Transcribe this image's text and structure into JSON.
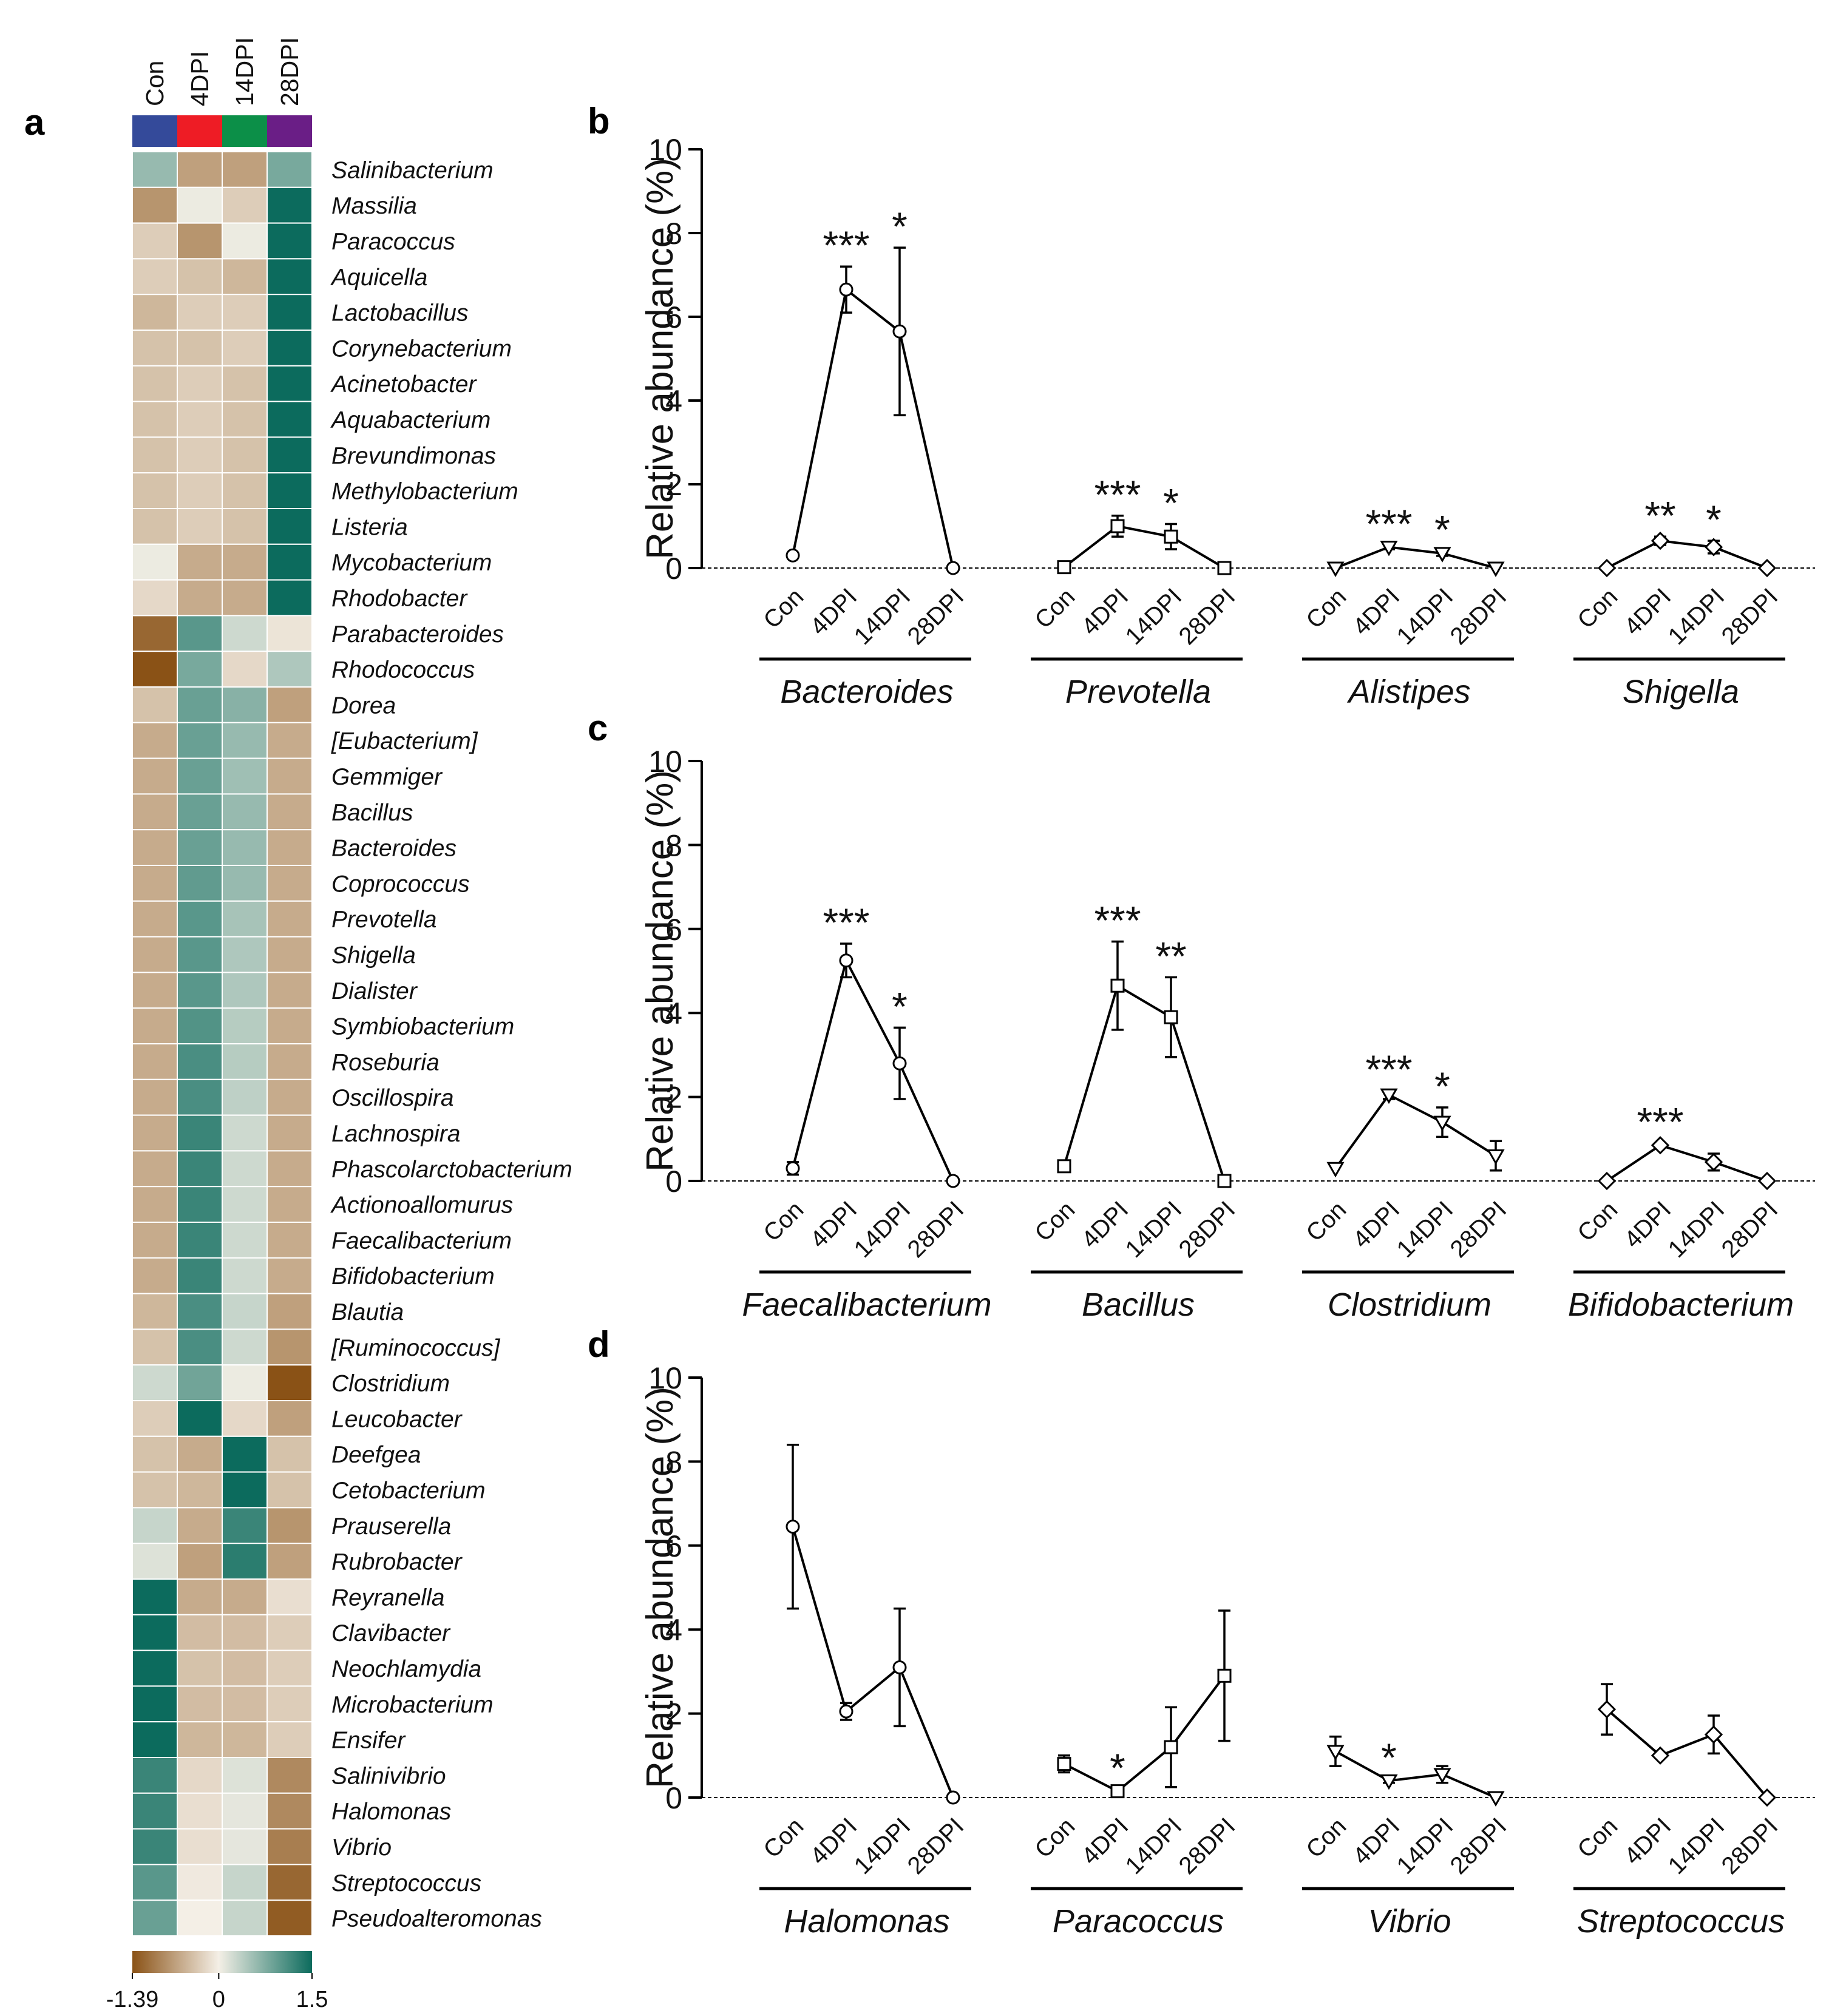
{
  "chart_data": [
    {
      "panel": "a",
      "type": "heatmap",
      "columns": [
        "Con",
        "4DPI",
        "14DPI",
        "28DPI"
      ],
      "column_colors": [
        "#344a9a",
        "#ee1c25",
        "#0c8f48",
        "#6a1e86"
      ],
      "color_scale": {
        "min": -1.39,
        "mid": 0,
        "max": 1.5,
        "min_color": "#8a5216",
        "mid_color": "#f4efe6",
        "max_color": "#0c6b5d"
      },
      "legend_ticks": [
        "-1.39",
        "0",
        "1.5"
      ],
      "rows": [
        {
          "label": "Salinibacterium",
          "values": [
            0.6,
            -0.7,
            -0.7,
            0.8
          ]
        },
        {
          "label": "Massilia",
          "values": [
            -0.8,
            0.05,
            -0.3,
            1.5
          ]
        },
        {
          "label": "Paracoccus",
          "values": [
            -0.3,
            -0.8,
            0.05,
            1.5
          ]
        },
        {
          "label": "Aquicella",
          "values": [
            -0.3,
            -0.4,
            -0.5,
            1.5
          ]
        },
        {
          "label": "Lactobacillus",
          "values": [
            -0.5,
            -0.3,
            -0.3,
            1.5
          ]
        },
        {
          "label": "Corynebacterium",
          "values": [
            -0.4,
            -0.4,
            -0.3,
            1.5
          ]
        },
        {
          "label": "Acinetobacter",
          "values": [
            -0.4,
            -0.3,
            -0.4,
            1.5
          ]
        },
        {
          "label": "Aquabacterium",
          "values": [
            -0.4,
            -0.3,
            -0.4,
            1.5
          ]
        },
        {
          "label": "Brevundimonas",
          "values": [
            -0.4,
            -0.3,
            -0.4,
            1.5
          ]
        },
        {
          "label": "Methylobacterium",
          "values": [
            -0.4,
            -0.3,
            -0.4,
            1.5
          ]
        },
        {
          "label": "Listeria",
          "values": [
            -0.4,
            -0.3,
            -0.4,
            1.5
          ]
        },
        {
          "label": "Mycobacterium",
          "values": [
            0.05,
            -0.6,
            -0.6,
            1.5
          ]
        },
        {
          "label": "Rhodobacter",
          "values": [
            -0.2,
            -0.6,
            -0.6,
            1.5
          ]
        },
        {
          "label": "Parabacteroides",
          "values": [
            -1.2,
            1.0,
            0.25,
            -0.1
          ]
        },
        {
          "label": "Rhodococcus",
          "values": [
            -1.39,
            0.8,
            -0.2,
            0.45
          ]
        },
        {
          "label": "Dorea",
          "values": [
            -0.4,
            0.9,
            0.7,
            -0.7
          ]
        },
        {
          "label": "[Eubacterium]",
          "values": [
            -0.6,
            0.9,
            0.6,
            -0.6
          ]
        },
        {
          "label": "Gemmiger",
          "values": [
            -0.6,
            0.9,
            0.55,
            -0.6
          ]
        },
        {
          "label": "Bacillus",
          "values": [
            -0.6,
            0.9,
            0.6,
            -0.6
          ]
        },
        {
          "label": "Bacteroides",
          "values": [
            -0.6,
            0.9,
            0.6,
            -0.6
          ]
        },
        {
          "label": "Coprococcus",
          "values": [
            -0.6,
            0.95,
            0.6,
            -0.6
          ]
        },
        {
          "label": "Prevotella",
          "values": [
            -0.6,
            1.0,
            0.5,
            -0.6
          ]
        },
        {
          "label": "Shigella",
          "values": [
            -0.6,
            1.0,
            0.45,
            -0.6
          ]
        },
        {
          "label": "Dialister",
          "values": [
            -0.6,
            1.0,
            0.45,
            -0.6
          ]
        },
        {
          "label": "Symbiobacterium",
          "values": [
            -0.6,
            1.05,
            0.4,
            -0.6
          ]
        },
        {
          "label": "Roseburia",
          "values": [
            -0.6,
            1.1,
            0.4,
            -0.6
          ]
        },
        {
          "label": "Oscillospira",
          "values": [
            -0.6,
            1.1,
            0.35,
            -0.6
          ]
        },
        {
          "label": "Lachnospira",
          "values": [
            -0.6,
            1.2,
            0.25,
            -0.6
          ]
        },
        {
          "label": "Phascolarctobacterium",
          "values": [
            -0.6,
            1.2,
            0.25,
            -0.6
          ]
        },
        {
          "label": "Actionoallomurus",
          "values": [
            -0.6,
            1.2,
            0.25,
            -0.6
          ]
        },
        {
          "label": "Faecalibacterium",
          "values": [
            -0.6,
            1.2,
            0.25,
            -0.6
          ]
        },
        {
          "label": "Bifidobacterium",
          "values": [
            -0.6,
            1.2,
            0.25,
            -0.6
          ]
        },
        {
          "label": "Blautia",
          "values": [
            -0.5,
            1.1,
            0.3,
            -0.7
          ]
        },
        {
          "label": "[Ruminococcus]",
          "values": [
            -0.4,
            1.1,
            0.25,
            -0.8
          ]
        },
        {
          "label": "Clostridium",
          "values": [
            0.25,
            0.85,
            0.05,
            -1.39
          ]
        },
        {
          "label": "Leucobacter",
          "values": [
            -0.3,
            1.5,
            -0.2,
            -0.7
          ]
        },
        {
          "label": "Deefgea",
          "values": [
            -0.4,
            -0.6,
            1.5,
            -0.4
          ]
        },
        {
          "label": "Cetobacterium",
          "values": [
            -0.4,
            -0.5,
            1.5,
            -0.4
          ]
        },
        {
          "label": "Prauserella",
          "values": [
            0.3,
            -0.6,
            1.2,
            -0.8
          ]
        },
        {
          "label": "Rubrobacter",
          "values": [
            0.15,
            -0.7,
            1.3,
            -0.7
          ]
        },
        {
          "label": "Reyranella",
          "values": [
            1.5,
            -0.6,
            -0.6,
            -0.15
          ]
        },
        {
          "label": "Clavibacter",
          "values": [
            1.5,
            -0.45,
            -0.45,
            -0.3
          ]
        },
        {
          "label": "Neochlamydia",
          "values": [
            1.5,
            -0.4,
            -0.45,
            -0.3
          ]
        },
        {
          "label": "Microbacterium",
          "values": [
            1.5,
            -0.45,
            -0.45,
            -0.3
          ]
        },
        {
          "label": "Ensifer",
          "values": [
            1.5,
            -0.5,
            -0.5,
            -0.3
          ]
        },
        {
          "label": "Salinivibrio",
          "values": [
            1.2,
            -0.2,
            0.15,
            -0.9
          ]
        },
        {
          "label": "Halomonas",
          "values": [
            1.2,
            -0.15,
            0.1,
            -0.9
          ]
        },
        {
          "label": "Vibrio",
          "values": [
            1.2,
            -0.15,
            0.1,
            -1.0
          ]
        },
        {
          "label": "Streptococcus",
          "values": [
            1.0,
            -0.05,
            0.3,
            -1.2
          ]
        },
        {
          "label": "Pseudoalteromonas",
          "values": [
            0.9,
            0.0,
            0.3,
            -1.3
          ]
        }
      ]
    },
    {
      "panel": "b",
      "type": "line",
      "ylabel": "Relative abundance (%)",
      "ylim": [
        0,
        10
      ],
      "yticks": [
        "0",
        "2",
        "4",
        "6",
        "8",
        "10"
      ],
      "x_categories": [
        "Con",
        "4DPI",
        "14DPI",
        "28DPI"
      ],
      "marker": "mixed",
      "groups": [
        {
          "name": "Bacteroides",
          "marker": "circle",
          "values": [
            0.3,
            6.65,
            5.65,
            0
          ],
          "errors": [
            0.05,
            0.55,
            2.0,
            0
          ],
          "stars": [
            "",
            "***",
            "*",
            ""
          ]
        },
        {
          "name": "Prevotella",
          "marker": "square",
          "values": [
            0.02,
            1.0,
            0.75,
            0
          ],
          "errors": [
            0,
            0.25,
            0.3,
            0
          ],
          "stars": [
            "",
            "***",
            "*",
            ""
          ]
        },
        {
          "name": "Alistipes",
          "marker": "triangle-down",
          "values": [
            0,
            0.5,
            0.35,
            0
          ],
          "errors": [
            0,
            0.05,
            0.06,
            0
          ],
          "stars": [
            "",
            "***",
            "*",
            ""
          ]
        },
        {
          "name": "Shigella",
          "marker": "diamond",
          "values": [
            0,
            0.65,
            0.5,
            0
          ],
          "errors": [
            0,
            0.1,
            0.15,
            0
          ],
          "stars": [
            "",
            "**",
            "*",
            ""
          ]
        }
      ]
    },
    {
      "panel": "c",
      "type": "line",
      "ylabel": "Relative abundance (%)",
      "ylim": [
        0,
        10
      ],
      "yticks": [
        "0",
        "2",
        "4",
        "6",
        "8",
        "10"
      ],
      "x_categories": [
        "Con",
        "4DPI",
        "14DPI",
        "28DPI"
      ],
      "groups": [
        {
          "name": "Faecalibacterium",
          "marker": "circle",
          "values": [
            0.3,
            5.25,
            2.8,
            0
          ],
          "errors": [
            0.15,
            0.4,
            0.85,
            0
          ],
          "stars": [
            "",
            "***",
            "*",
            ""
          ]
        },
        {
          "name": "Bacillus",
          "marker": "square",
          "values": [
            0.35,
            4.65,
            3.9,
            0
          ],
          "errors": [
            0,
            1.05,
            0.95,
            0
          ],
          "stars": [
            "",
            "***",
            "**",
            ""
          ]
        },
        {
          "name": "Clostridium",
          "marker": "triangle-down",
          "values": [
            0.3,
            2.05,
            1.4,
            0.6
          ],
          "errors": [
            0,
            0.1,
            0.35,
            0.35
          ],
          "stars": [
            "",
            "***",
            "*",
            ""
          ]
        },
        {
          "name": "Bifidobacterium",
          "marker": "diamond",
          "values": [
            0,
            0.85,
            0.45,
            0
          ],
          "errors": [
            0,
            0.05,
            0.2,
            0
          ],
          "stars": [
            "",
            "***",
            "",
            ""
          ]
        }
      ]
    },
    {
      "panel": "d",
      "type": "line",
      "ylabel": "Relative abundance (%)",
      "ylim": [
        0,
        10
      ],
      "yticks": [
        "0",
        "2",
        "4",
        "6",
        "8",
        "10"
      ],
      "x_categories": [
        "Con",
        "4DPI",
        "14DPI",
        "28DPI"
      ],
      "groups": [
        {
          "name": "Halomonas",
          "marker": "circle",
          "values": [
            6.45,
            2.05,
            3.1,
            0
          ],
          "errors": [
            1.95,
            0.2,
            1.4,
            0
          ],
          "stars": [
            "",
            "",
            "",
            ""
          ]
        },
        {
          "name": "Paracoccus",
          "marker": "square",
          "values": [
            0.8,
            0.15,
            1.2,
            2.9
          ],
          "errors": [
            0.2,
            0.05,
            0.95,
            1.55
          ],
          "stars": [
            "",
            "*",
            "",
            ""
          ]
        },
        {
          "name": "Vibrio",
          "marker": "triangle-down",
          "values": [
            1.1,
            0.4,
            0.55,
            0
          ],
          "errors": [
            0.35,
            0.05,
            0.2,
            0
          ],
          "stars": [
            "",
            "*",
            "",
            ""
          ]
        },
        {
          "name": "Streptococcus",
          "marker": "diamond",
          "values": [
            2.1,
            1.0,
            1.5,
            0
          ],
          "errors": [
            0.6,
            0.05,
            0.45,
            0
          ],
          "stars": [
            "",
            "",
            "",
            ""
          ]
        }
      ]
    }
  ],
  "panel_letters": [
    "a",
    "b",
    "c",
    "d"
  ]
}
